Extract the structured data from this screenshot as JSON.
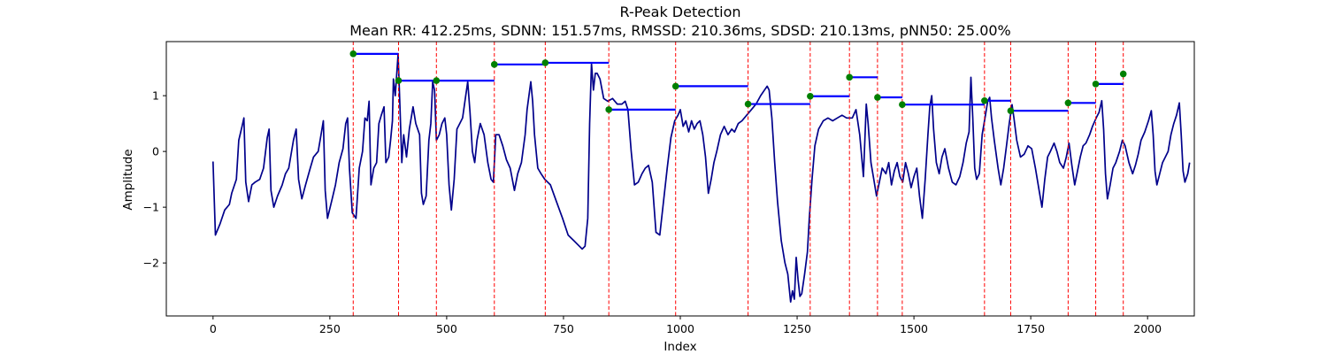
{
  "chart_data": {
    "type": "line",
    "title": "R-Peak Detection",
    "subtitle": "Mean RR: 412.25ms, SDNN: 151.57ms, RMSSD: 210.36ms, SDSD: 210.13ms, pNN50: 25.00%",
    "xlabel": "Index",
    "ylabel": "Amplitude",
    "xlim": [
      -100,
      2100
    ],
    "ylim": [
      -2.95,
      1.97
    ],
    "xticks": [
      0,
      250,
      500,
      750,
      1000,
      1250,
      1500,
      1750,
      2000
    ],
    "yticks": [
      -2,
      -1,
      0,
      1
    ],
    "ytick_labels": [
      "−2",
      "−1",
      "0",
      "1"
    ],
    "grid": false,
    "colors": {
      "signal": "#00008b",
      "peak_line": "#ff0000",
      "peak_marker": "#008000",
      "rr_bar": "#0000ff"
    },
    "signal": [
      [
        0,
        -0.18
      ],
      [
        5,
        -1.5
      ],
      [
        15,
        -1.3
      ],
      [
        25,
        -1.05
      ],
      [
        35,
        -0.95
      ],
      [
        40,
        -0.75
      ],
      [
        50,
        -0.5
      ],
      [
        55,
        0.2
      ],
      [
        62,
        0.45
      ],
      [
        66,
        0.6
      ],
      [
        70,
        -0.55
      ],
      [
        76,
        -0.9
      ],
      [
        83,
        -0.6
      ],
      [
        90,
        -0.55
      ],
      [
        100,
        -0.5
      ],
      [
        108,
        -0.3
      ],
      [
        116,
        0.25
      ],
      [
        120,
        0.4
      ],
      [
        124,
        -0.7
      ],
      [
        130,
        -1.0
      ],
      [
        138,
        -0.8
      ],
      [
        148,
        -0.6
      ],
      [
        155,
        -0.4
      ],
      [
        162,
        -0.3
      ],
      [
        172,
        0.2
      ],
      [
        178,
        0.4
      ],
      [
        183,
        -0.5
      ],
      [
        190,
        -0.85
      ],
      [
        198,
        -0.6
      ],
      [
        208,
        -0.3
      ],
      [
        215,
        -0.1
      ],
      [
        225,
        0.0
      ],
      [
        232,
        0.35
      ],
      [
        236,
        0.55
      ],
      [
        240,
        -0.7
      ],
      [
        245,
        -1.2
      ],
      [
        255,
        -0.85
      ],
      [
        262,
        -0.6
      ],
      [
        270,
        -0.2
      ],
      [
        278,
        0.05
      ],
      [
        284,
        0.5
      ],
      [
        288,
        0.6
      ],
      [
        292,
        -0.3
      ],
      [
        298,
        -1.1
      ],
      [
        306,
        -1.2
      ],
      [
        313,
        -0.3
      ],
      [
        320,
        0.0
      ],
      [
        325,
        0.6
      ],
      [
        330,
        0.55
      ],
      [
        334,
        0.9
      ],
      [
        338,
        -0.6
      ],
      [
        344,
        -0.3
      ],
      [
        350,
        -0.2
      ],
      [
        355,
        0.5
      ],
      [
        360,
        0.65
      ],
      [
        366,
        0.8
      ],
      [
        370,
        -0.2
      ],
      [
        376,
        -0.1
      ],
      [
        380,
        0.2
      ],
      [
        384,
        0.55
      ],
      [
        386,
        1.3
      ],
      [
        390,
        1.0
      ],
      [
        396,
        1.75
      ],
      [
        400,
        0.8
      ],
      [
        404,
        -0.2
      ],
      [
        408,
        0.3
      ],
      [
        414,
        -0.1
      ],
      [
        420,
        0.4
      ],
      [
        428,
        0.8
      ],
      [
        434,
        0.5
      ],
      [
        442,
        0.3
      ],
      [
        446,
        -0.75
      ],
      [
        450,
        -0.95
      ],
      [
        456,
        -0.8
      ],
      [
        462,
        0.2
      ],
      [
        466,
        0.5
      ],
      [
        470,
        1.25
      ],
      [
        474,
        1.1
      ],
      [
        478,
        0.2
      ],
      [
        484,
        0.3
      ],
      [
        490,
        0.5
      ],
      [
        496,
        0.6
      ],
      [
        500,
        0.3
      ],
      [
        505,
        -0.6
      ],
      [
        510,
        -1.05
      ],
      [
        516,
        -0.5
      ],
      [
        522,
        0.4
      ],
      [
        528,
        0.5
      ],
      [
        534,
        0.6
      ],
      [
        540,
        0.95
      ],
      [
        545,
        1.25
      ],
      [
        550,
        0.7
      ],
      [
        555,
        0.0
      ],
      [
        560,
        -0.2
      ],
      [
        565,
        0.2
      ],
      [
        572,
        0.5
      ],
      [
        580,
        0.3
      ],
      [
        588,
        -0.2
      ],
      [
        595,
        -0.5
      ],
      [
        600,
        -0.55
      ],
      [
        605,
        0.3
      ],
      [
        612,
        0.3
      ],
      [
        620,
        0.1
      ],
      [
        628,
        -0.15
      ],
      [
        636,
        -0.3
      ],
      [
        645,
        -0.7
      ],
      [
        652,
        -0.4
      ],
      [
        660,
        -0.2
      ],
      [
        668,
        0.3
      ],
      [
        672,
        0.75
      ],
      [
        676,
        1.0
      ],
      [
        680,
        1.25
      ],
      [
        684,
        0.9
      ],
      [
        688,
        0.3
      ],
      [
        695,
        -0.3
      ],
      [
        702,
        -0.4
      ],
      [
        710,
        -0.5
      ],
      [
        722,
        -0.6
      ],
      [
        735,
        -0.9
      ],
      [
        748,
        -1.2
      ],
      [
        760,
        -1.5
      ],
      [
        772,
        -1.6
      ],
      [
        784,
        -1.7
      ],
      [
        790,
        -1.75
      ],
      [
        796,
        -1.7
      ],
      [
        802,
        -1.2
      ],
      [
        806,
        0.5
      ],
      [
        810,
        1.58
      ],
      [
        814,
        1.1
      ],
      [
        818,
        1.4
      ],
      [
        822,
        1.4
      ],
      [
        828,
        1.3
      ],
      [
        836,
        0.95
      ],
      [
        845,
        0.9
      ],
      [
        855,
        0.95
      ],
      [
        865,
        0.85
      ],
      [
        875,
        0.85
      ],
      [
        882,
        0.9
      ],
      [
        888,
        0.75
      ],
      [
        895,
        0.0
      ],
      [
        902,
        -0.6
      ],
      [
        910,
        -0.55
      ],
      [
        918,
        -0.4
      ],
      [
        925,
        -0.3
      ],
      [
        932,
        -0.25
      ],
      [
        940,
        -0.55
      ],
      [
        948,
        -1.45
      ],
      [
        956,
        -1.5
      ],
      [
        964,
        -0.9
      ],
      [
        972,
        -0.3
      ],
      [
        980,
        0.25
      ],
      [
        988,
        0.55
      ],
      [
        995,
        0.65
      ],
      [
        1000,
        0.75
      ],
      [
        1006,
        0.45
      ],
      [
        1012,
        0.55
      ],
      [
        1018,
        0.35
      ],
      [
        1024,
        0.55
      ],
      [
        1030,
        0.4
      ],
      [
        1036,
        0.5
      ],
      [
        1042,
        0.55
      ],
      [
        1048,
        0.3
      ],
      [
        1054,
        -0.1
      ],
      [
        1060,
        -0.75
      ],
      [
        1066,
        -0.5
      ],
      [
        1072,
        -0.2
      ],
      [
        1078,
        0.0
      ],
      [
        1086,
        0.3
      ],
      [
        1094,
        0.45
      ],
      [
        1102,
        0.3
      ],
      [
        1110,
        0.4
      ],
      [
        1116,
        0.35
      ],
      [
        1124,
        0.5
      ],
      [
        1132,
        0.55
      ],
      [
        1142,
        0.65
      ],
      [
        1152,
        0.75
      ],
      [
        1162,
        0.85
      ],
      [
        1172,
        1.0
      ],
      [
        1180,
        1.1
      ],
      [
        1186,
        1.17
      ],
      [
        1190,
        1.1
      ],
      [
        1196,
        0.6
      ],
      [
        1202,
        -0.2
      ],
      [
        1208,
        -0.9
      ],
      [
        1216,
        -1.6
      ],
      [
        1224,
        -2.0
      ],
      [
        1230,
        -2.2
      ],
      [
        1236,
        -2.7
      ],
      [
        1240,
        -2.5
      ],
      [
        1244,
        -2.65
      ],
      [
        1248,
        -1.9
      ],
      [
        1252,
        -2.3
      ],
      [
        1256,
        -2.6
      ],
      [
        1260,
        -2.55
      ],
      [
        1266,
        -2.2
      ],
      [
        1272,
        -1.8
      ],
      [
        1276,
        -1.2
      ],
      [
        1282,
        -0.5
      ],
      [
        1288,
        0.1
      ],
      [
        1296,
        0.4
      ],
      [
        1306,
        0.55
      ],
      [
        1316,
        0.6
      ],
      [
        1326,
        0.55
      ],
      [
        1336,
        0.6
      ],
      [
        1346,
        0.65
      ],
      [
        1356,
        0.6
      ],
      [
        1368,
        0.6
      ],
      [
        1376,
        0.75
      ],
      [
        1384,
        0.3
      ],
      [
        1392,
        -0.45
      ],
      [
        1398,
        0.85
      ],
      [
        1402,
        0.5
      ],
      [
        1408,
        -0.2
      ],
      [
        1414,
        -0.5
      ],
      [
        1420,
        -0.8
      ],
      [
        1426,
        -0.55
      ],
      [
        1432,
        -0.3
      ],
      [
        1440,
        -0.4
      ],
      [
        1446,
        -0.2
      ],
      [
        1452,
        -0.6
      ],
      [
        1458,
        -0.35
      ],
      [
        1464,
        -0.2
      ],
      [
        1470,
        -0.45
      ],
      [
        1476,
        -0.55
      ],
      [
        1482,
        -0.2
      ],
      [
        1488,
        -0.4
      ],
      [
        1494,
        -0.65
      ],
      [
        1500,
        -0.45
      ],
      [
        1506,
        -0.3
      ],
      [
        1512,
        -0.8
      ],
      [
        1518,
        -1.2
      ],
      [
        1524,
        -0.5
      ],
      [
        1530,
        0.3
      ],
      [
        1534,
        0.8
      ],
      [
        1538,
        1.0
      ],
      [
        1542,
        0.4
      ],
      [
        1548,
        -0.2
      ],
      [
        1554,
        -0.4
      ],
      [
        1560,
        -0.1
      ],
      [
        1566,
        0.05
      ],
      [
        1574,
        -0.3
      ],
      [
        1582,
        -0.55
      ],
      [
        1590,
        -0.6
      ],
      [
        1598,
        -0.45
      ],
      [
        1605,
        -0.2
      ],
      [
        1612,
        0.15
      ],
      [
        1618,
        0.35
      ],
      [
        1622,
        1.33
      ],
      [
        1626,
        0.6
      ],
      [
        1630,
        -0.3
      ],
      [
        1634,
        -0.5
      ],
      [
        1640,
        -0.4
      ],
      [
        1646,
        0.3
      ],
      [
        1652,
        0.6
      ],
      [
        1658,
        0.9
      ],
      [
        1662,
        0.97
      ],
      [
        1666,
        0.6
      ],
      [
        1672,
        0.2
      ],
      [
        1680,
        -0.3
      ],
      [
        1686,
        -0.6
      ],
      [
        1692,
        -0.3
      ],
      [
        1698,
        0.1
      ],
      [
        1704,
        0.5
      ],
      [
        1710,
        0.84
      ],
      [
        1714,
        0.6
      ],
      [
        1720,
        0.2
      ],
      [
        1728,
        -0.1
      ],
      [
        1736,
        -0.05
      ],
      [
        1744,
        0.1
      ],
      [
        1752,
        0.05
      ],
      [
        1760,
        -0.3
      ],
      [
        1768,
        -0.7
      ],
      [
        1774,
        -1.0
      ],
      [
        1780,
        -0.5
      ],
      [
        1786,
        -0.1
      ],
      [
        1792,
        0.0
      ],
      [
        1800,
        0.15
      ],
      [
        1806,
        0.0
      ],
      [
        1812,
        -0.2
      ],
      [
        1820,
        -0.3
      ],
      [
        1826,
        -0.1
      ],
      [
        1832,
        0.15
      ],
      [
        1838,
        -0.25
      ],
      [
        1844,
        -0.6
      ],
      [
        1850,
        -0.35
      ],
      [
        1856,
        -0.1
      ],
      [
        1862,
        0.1
      ],
      [
        1868,
        0.15
      ],
      [
        1876,
        0.3
      ],
      [
        1882,
        0.45
      ],
      [
        1890,
        0.6
      ],
      [
        1896,
        0.7
      ],
      [
        1902,
        0.91
      ],
      [
        1906,
        0.4
      ],
      [
        1910,
        -0.4
      ],
      [
        1914,
        -0.85
      ],
      [
        1920,
        -0.6
      ],
      [
        1926,
        -0.3
      ],
      [
        1932,
        -0.2
      ],
      [
        1940,
        0.0
      ],
      [
        1946,
        0.2
      ],
      [
        1952,
        0.1
      ],
      [
        1960,
        -0.2
      ],
      [
        1968,
        -0.4
      ],
      [
        1974,
        -0.25
      ],
      [
        1980,
        -0.05
      ],
      [
        1986,
        0.2
      ],
      [
        1994,
        0.35
      ],
      [
        2002,
        0.55
      ],
      [
        2008,
        0.73
      ],
      [
        2012,
        0.3
      ],
      [
        2016,
        -0.35
      ],
      [
        2020,
        -0.6
      ],
      [
        2026,
        -0.4
      ],
      [
        2032,
        -0.2
      ],
      [
        2038,
        -0.1
      ],
      [
        2044,
        0.0
      ],
      [
        2050,
        0.3
      ],
      [
        2056,
        0.5
      ],
      [
        2062,
        0.65
      ],
      [
        2068,
        0.87
      ],
      [
        2072,
        0.3
      ],
      [
        2076,
        -0.35
      ],
      [
        2080,
        -0.55
      ],
      [
        2086,
        -0.4
      ],
      [
        2090,
        -0.2
      ]
    ],
    "peaks": [
      {
        "x": 300,
        "y": 1.75,
        "next": 397
      },
      {
        "x": 397,
        "y": 1.27,
        "next": 478
      },
      {
        "x": 478,
        "y": 1.27,
        "next": 602
      },
      {
        "x": 602,
        "y": 1.56,
        "next": 711
      },
      {
        "x": 711,
        "y": 1.59,
        "next": 847
      },
      {
        "x": 847,
        "y": 0.75,
        "next": 990
      },
      {
        "x": 990,
        "y": 1.17,
        "next": 1145
      },
      {
        "x": 1145,
        "y": 0.85,
        "next": 1278
      },
      {
        "x": 1278,
        "y": 0.99,
        "next": 1362
      },
      {
        "x": 1362,
        "y": 1.33,
        "next": 1422
      },
      {
        "x": 1422,
        "y": 0.97,
        "next": 1475
      },
      {
        "x": 1475,
        "y": 0.84,
        "next": 1651
      },
      {
        "x": 1651,
        "y": 0.91,
        "next": 1707
      },
      {
        "x": 1707,
        "y": 0.73,
        "next": 1830
      },
      {
        "x": 1830,
        "y": 0.87,
        "next": 1889
      },
      {
        "x": 1889,
        "y": 1.21,
        "next": 1948
      },
      {
        "x": 1948,
        "y": 1.39,
        "next": null
      }
    ]
  }
}
